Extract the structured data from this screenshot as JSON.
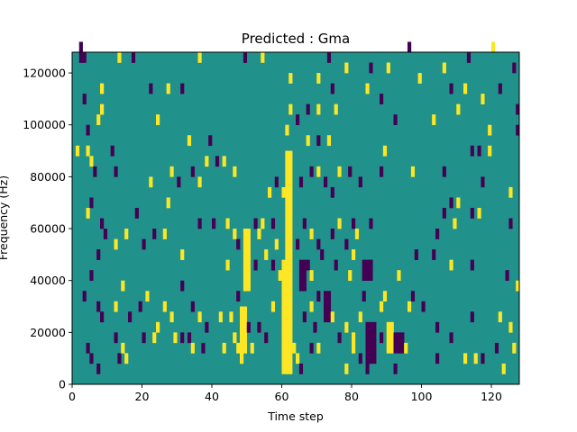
{
  "chart_data": {
    "type": "heatmap",
    "title": "Predicted : Gma",
    "xlabel": "Time step",
    "ylabel": "Frequency (Hz)",
    "xlim": [
      0,
      128
    ],
    "ylim": [
      0,
      128000
    ],
    "x_ticks": [
      0,
      20,
      40,
      60,
      80,
      100,
      120
    ],
    "y_ticks": [
      0,
      20000,
      40000,
      60000,
      80000,
      100000,
      120000
    ],
    "colormap": {
      "background": "#21918c",
      "low": "#440154",
      "high": "#fde725"
    },
    "value_levels": {
      "low": -1,
      "background": 0,
      "high": 1
    },
    "cell_size": {
      "time_steps": 1,
      "frequency_hz": 4000
    },
    "bands": [
      {
        "t": [
          60,
          63
        ],
        "f": [
          4000,
          48000
        ],
        "v": 1
      },
      {
        "t": [
          61,
          63
        ],
        "f": [
          48000,
          90000
        ],
        "v": 1
      },
      {
        "t": [
          48,
          50
        ],
        "f": [
          12000,
          30000
        ],
        "v": 1
      },
      {
        "t": [
          49,
          51
        ],
        "f": [
          36000,
          60000
        ],
        "v": 1
      },
      {
        "t": [
          84,
          87
        ],
        "f": [
          8000,
          24000
        ],
        "v": -1
      },
      {
        "t": [
          90,
          92
        ],
        "f": [
          12000,
          24000
        ],
        "v": 1
      },
      {
        "t": [
          92,
          95
        ],
        "f": [
          12000,
          20000
        ],
        "v": -1
      },
      {
        "t": [
          65,
          67
        ],
        "f": [
          36000,
          48000
        ],
        "v": -1
      },
      {
        "t": [
          72,
          74
        ],
        "f": [
          24000,
          36000
        ],
        "v": -1
      },
      {
        "t": [
          83,
          86
        ],
        "f": [
          40000,
          48000
        ],
        "v": -1
      }
    ],
    "cells": [
      [
        2,
        124000,
        -1
      ],
      [
        3,
        124000,
        -1
      ],
      [
        2,
        128000,
        -1
      ],
      [
        13,
        124000,
        1
      ],
      [
        17,
        124000,
        -1
      ],
      [
        36,
        124000,
        1
      ],
      [
        49,
        124000,
        -1
      ],
      [
        54,
        124000,
        1
      ],
      [
        73,
        124000,
        -1
      ],
      [
        78,
        120000,
        1
      ],
      [
        85,
        120000,
        -1
      ],
      [
        90,
        120000,
        1
      ],
      [
        96,
        128000,
        -1
      ],
      [
        106,
        120000,
        1
      ],
      [
        113,
        124000,
        -1
      ],
      [
        120,
        128000,
        1
      ],
      [
        126,
        120000,
        -1
      ],
      [
        3,
        108000,
        -1
      ],
      [
        8,
        112000,
        1
      ],
      [
        22,
        112000,
        -1
      ],
      [
        27,
        112000,
        1
      ],
      [
        31,
        112000,
        -1
      ],
      [
        62,
        116000,
        1
      ],
      [
        70,
        116000,
        1
      ],
      [
        74,
        112000,
        -1
      ],
      [
        84,
        112000,
        1
      ],
      [
        88,
        108000,
        -1
      ],
      [
        99,
        116000,
        1
      ],
      [
        108,
        112000,
        -1
      ],
      [
        112,
        112000,
        1
      ],
      [
        117,
        108000,
        1
      ],
      [
        122,
        112000,
        -1
      ],
      [
        127,
        104000,
        -1
      ],
      [
        4,
        96000,
        -1
      ],
      [
        7,
        100000,
        1
      ],
      [
        8,
        104000,
        1
      ],
      [
        24,
        100000,
        1
      ],
      [
        62,
        104000,
        1
      ],
      [
        64,
        100000,
        -1
      ],
      [
        67,
        104000,
        -1
      ],
      [
        70,
        104000,
        1
      ],
      [
        75,
        104000,
        1
      ],
      [
        92,
        100000,
        -1
      ],
      [
        103,
        100000,
        1
      ],
      [
        110,
        104000,
        1
      ],
      [
        119,
        96000,
        1
      ],
      [
        127,
        96000,
        -1
      ],
      [
        1,
        88000,
        1
      ],
      [
        4,
        88000,
        1
      ],
      [
        5,
        84000,
        1
      ],
      [
        11,
        88000,
        -1
      ],
      [
        33,
        92000,
        1
      ],
      [
        39,
        92000,
        -1
      ],
      [
        61,
        96000,
        1
      ],
      [
        67,
        92000,
        1
      ],
      [
        70,
        92000,
        -1
      ],
      [
        73,
        92000,
        1
      ],
      [
        89,
        88000,
        1
      ],
      [
        114,
        88000,
        -1
      ],
      [
        116,
        88000,
        -1
      ],
      [
        119,
        88000,
        1
      ],
      [
        6,
        80000,
        -1
      ],
      [
        12,
        80000,
        -1
      ],
      [
        22,
        76000,
        1
      ],
      [
        28,
        80000,
        1
      ],
      [
        30,
        76000,
        -1
      ],
      [
        34,
        80000,
        -1
      ],
      [
        36,
        76000,
        1
      ],
      [
        38,
        84000,
        1
      ],
      [
        41,
        84000,
        -1
      ],
      [
        43,
        84000,
        1
      ],
      [
        46,
        80000,
        1
      ],
      [
        56,
        72000,
        1
      ],
      [
        58,
        76000,
        -1
      ],
      [
        60,
        72000,
        1
      ],
      [
        65,
        76000,
        -1
      ],
      [
        68,
        80000,
        -1
      ],
      [
        70,
        80000,
        1
      ],
      [
        72,
        76000,
        -1
      ],
      [
        74,
        72000,
        -1
      ],
      [
        76,
        80000,
        1
      ],
      [
        79,
        80000,
        -1
      ],
      [
        82,
        76000,
        -1
      ],
      [
        88,
        80000,
        -1
      ],
      [
        97,
        80000,
        1
      ],
      [
        106,
        80000,
        -1
      ],
      [
        117,
        76000,
        -1
      ],
      [
        125,
        72000,
        1
      ],
      [
        5,
        68000,
        -1
      ],
      [
        4,
        64000,
        1
      ],
      [
        8,
        60000,
        -1
      ],
      [
        18,
        64000,
        -1
      ],
      [
        27,
        68000,
        1
      ],
      [
        36,
        60000,
        -1
      ],
      [
        40,
        60000,
        -1
      ],
      [
        44,
        60000,
        1
      ],
      [
        46,
        56000,
        1
      ],
      [
        52,
        60000,
        -1
      ],
      [
        53,
        56000,
        1
      ],
      [
        54,
        60000,
        1
      ],
      [
        57,
        60000,
        -1
      ],
      [
        58,
        52000,
        1
      ],
      [
        66,
        60000,
        -1
      ],
      [
        68,
        56000,
        1
      ],
      [
        70,
        52000,
        -1
      ],
      [
        74,
        56000,
        -1
      ],
      [
        76,
        60000,
        1
      ],
      [
        78,
        52000,
        -1
      ],
      [
        80,
        60000,
        -1
      ],
      [
        81,
        56000,
        1
      ],
      [
        85,
        60000,
        -1
      ],
      [
        104,
        56000,
        -1
      ],
      [
        106,
        64000,
        -1
      ],
      [
        108,
        68000,
        -1
      ],
      [
        109,
        60000,
        1
      ],
      [
        110,
        68000,
        1
      ],
      [
        114,
        64000,
        -1
      ],
      [
        116,
        64000,
        1
      ],
      [
        125,
        60000,
        -1
      ],
      [
        7,
        48000,
        -1
      ],
      [
        9,
        56000,
        -1
      ],
      [
        12,
        52000,
        1
      ],
      [
        15,
        56000,
        1
      ],
      [
        20,
        52000,
        -1
      ],
      [
        23,
        56000,
        -1
      ],
      [
        26,
        56000,
        1
      ],
      [
        31,
        48000,
        1
      ],
      [
        44,
        44000,
        1
      ],
      [
        47,
        52000,
        -1
      ],
      [
        52,
        44000,
        -1
      ],
      [
        55,
        48000,
        1
      ],
      [
        57,
        44000,
        -1
      ],
      [
        59,
        40000,
        1
      ],
      [
        64,
        52000,
        -1
      ],
      [
        67,
        44000,
        -1
      ],
      [
        68,
        40000,
        1
      ],
      [
        71,
        48000,
        -1
      ],
      [
        75,
        44000,
        -1
      ],
      [
        79,
        40000,
        1
      ],
      [
        80,
        48000,
        1
      ],
      [
        85,
        44000,
        -1
      ],
      [
        93,
        40000,
        1
      ],
      [
        98,
        48000,
        -1
      ],
      [
        103,
        48000,
        -1
      ],
      [
        108,
        44000,
        1
      ],
      [
        114,
        44000,
        -1
      ],
      [
        124,
        40000,
        -1
      ],
      [
        127,
        36000,
        1
      ],
      [
        3,
        32000,
        -1
      ],
      [
        5,
        40000,
        -1
      ],
      [
        7,
        28000,
        -1
      ],
      [
        8,
        24000,
        -1
      ],
      [
        12,
        28000,
        1
      ],
      [
        14,
        36000,
        1
      ],
      [
        16,
        24000,
        -1
      ],
      [
        19,
        28000,
        -1
      ],
      [
        21,
        32000,
        1
      ],
      [
        26,
        28000,
        1
      ],
      [
        28,
        24000,
        1
      ],
      [
        31,
        36000,
        -1
      ],
      [
        34,
        28000,
        -1
      ],
      [
        36,
        24000,
        1
      ],
      [
        38,
        20000,
        -1
      ],
      [
        42,
        24000,
        1
      ],
      [
        45,
        24000,
        1
      ],
      [
        47,
        32000,
        -1
      ],
      [
        53,
        20000,
        -1
      ],
      [
        57,
        28000,
        1
      ],
      [
        66,
        24000,
        -1
      ],
      [
        68,
        28000,
        1
      ],
      [
        69,
        20000,
        -1
      ],
      [
        70,
        32000,
        -1
      ],
      [
        74,
        24000,
        1
      ],
      [
        76,
        16000,
        -1
      ],
      [
        78,
        20000,
        1
      ],
      [
        80,
        16000,
        1
      ],
      [
        82,
        24000,
        1
      ],
      [
        83,
        32000,
        -1
      ],
      [
        88,
        28000,
        1
      ],
      [
        89,
        32000,
        1
      ],
      [
        96,
        28000,
        1
      ],
      [
        97,
        32000,
        -1
      ],
      [
        100,
        28000,
        -1
      ],
      [
        104,
        20000,
        -1
      ],
      [
        114,
        24000,
        -1
      ],
      [
        122,
        24000,
        1
      ],
      [
        125,
        20000,
        1
      ],
      [
        4,
        12000,
        -1
      ],
      [
        5,
        8000,
        -1
      ],
      [
        7,
        4000,
        -1
      ],
      [
        12,
        16000,
        -1
      ],
      [
        13,
        8000,
        -1
      ],
      [
        14,
        12000,
        1
      ],
      [
        15,
        8000,
        1
      ],
      [
        20,
        16000,
        -1
      ],
      [
        23,
        16000,
        1
      ],
      [
        24,
        20000,
        1
      ],
      [
        29,
        16000,
        1
      ],
      [
        31,
        16000,
        -1
      ],
      [
        33,
        16000,
        -1
      ],
      [
        34,
        12000,
        1
      ],
      [
        37,
        12000,
        -1
      ],
      [
        43,
        12000,
        1
      ],
      [
        46,
        16000,
        1
      ],
      [
        47,
        12000,
        1
      ],
      [
        48,
        8000,
        1
      ],
      [
        50,
        20000,
        -1
      ],
      [
        51,
        12000,
        1
      ],
      [
        55,
        16000,
        -1
      ],
      [
        63,
        12000,
        1
      ],
      [
        64,
        8000,
        1
      ],
      [
        65,
        4000,
        -1
      ],
      [
        68,
        12000,
        -1
      ],
      [
        70,
        12000,
        1
      ],
      [
        78,
        4000,
        1
      ],
      [
        80,
        12000,
        1
      ],
      [
        82,
        8000,
        -1
      ],
      [
        84,
        4000,
        -1
      ],
      [
        88,
        16000,
        -1
      ],
      [
        92,
        4000,
        -1
      ],
      [
        95,
        12000,
        1
      ],
      [
        104,
        8000,
        -1
      ],
      [
        108,
        16000,
        -1
      ],
      [
        112,
        8000,
        1
      ],
      [
        115,
        8000,
        1
      ],
      [
        117,
        8000,
        -1
      ],
      [
        121,
        12000,
        -1
      ],
      [
        123,
        4000,
        1
      ],
      [
        126,
        12000,
        1
      ]
    ]
  }
}
